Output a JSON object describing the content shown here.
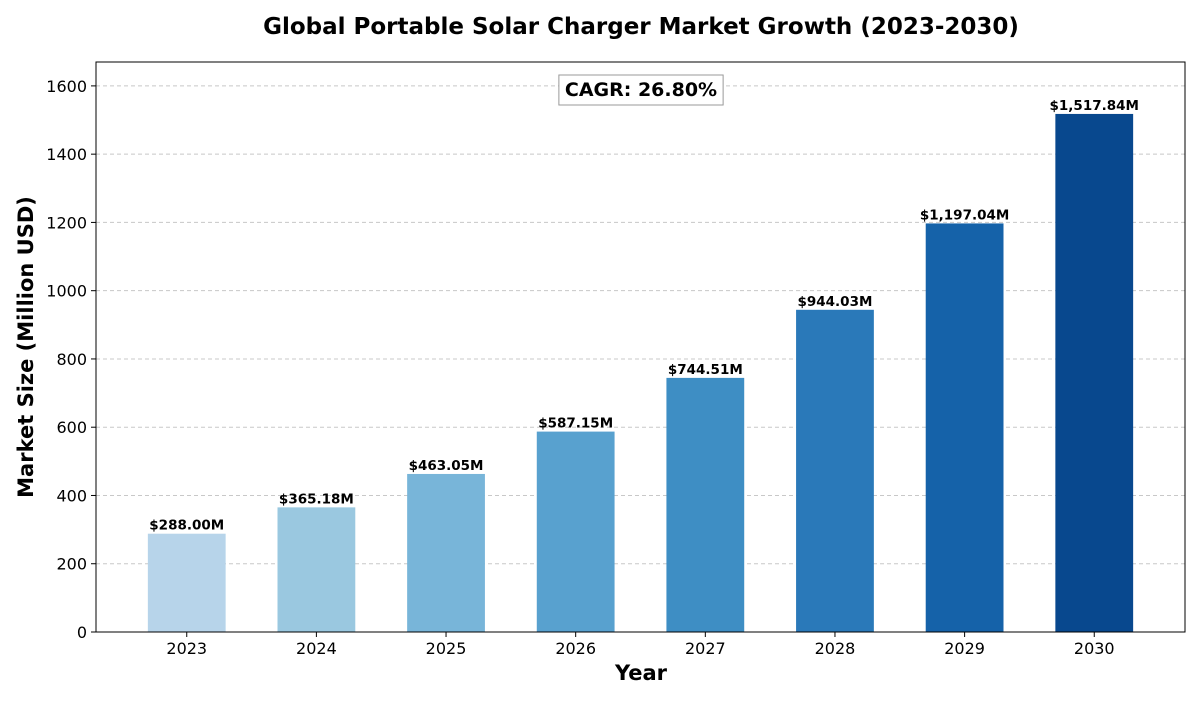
{
  "chart_data": {
    "type": "bar",
    "title": "Global Portable Solar Charger Market Growth (2023-2030)",
    "xlabel": "Year",
    "ylabel": "Market Size (Million USD)",
    "categories": [
      "2023",
      "2024",
      "2025",
      "2026",
      "2027",
      "2028",
      "2029",
      "2030"
    ],
    "values": [
      288.0,
      365.18,
      463.05,
      587.15,
      744.51,
      944.03,
      1197.04,
      1517.84
    ],
    "data_labels": [
      "$288.00M",
      "$365.18M",
      "$463.05M",
      "$587.15M",
      "$744.51M",
      "$944.03M",
      "$1,197.04M",
      "$1,517.84M"
    ],
    "bar_colors": [
      "#b7d4ea",
      "#9ac8e0",
      "#78b5d9",
      "#58a1cf",
      "#3e8ec4",
      "#2a79b9",
      "#1562a9",
      "#08488e"
    ],
    "ylim": [
      0,
      1670
    ],
    "yticks": [
      0,
      200,
      400,
      600,
      800,
      1000,
      1200,
      1400,
      1600
    ],
    "grid": true,
    "annotation": "CAGR: 26.80%"
  }
}
